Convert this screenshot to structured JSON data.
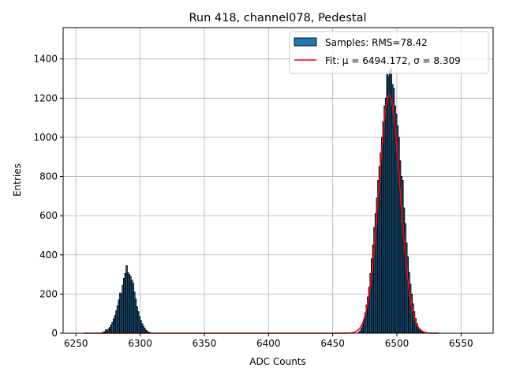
{
  "chart_data": {
    "type": "bar",
    "title": "Run 418, channel078, Pedestal",
    "xlabel": "ADC Counts",
    "ylabel": "Entries",
    "xlim": [
      6240,
      6575
    ],
    "ylim": [
      0,
      1560
    ],
    "xticks": [
      6250,
      6300,
      6350,
      6400,
      6450,
      6500,
      6550
    ],
    "yticks": [
      0,
      200,
      400,
      600,
      800,
      1000,
      1200,
      1400
    ],
    "grid": true,
    "legend_position": "top-right",
    "colors": {
      "bars": "#1f77b4",
      "bar_edge": "#000000",
      "fit": "#ff0000",
      "grid": "#b0b0b0"
    },
    "histogram": {
      "name": "Samples: RMS=78.42",
      "bin_width": 1,
      "bins": [
        [
          6270,
          3
        ],
        [
          6271,
          5
        ],
        [
          6272,
          8
        ],
        [
          6273,
          18
        ],
        [
          6274,
          12
        ],
        [
          6275,
          22
        ],
        [
          6276,
          30
        ],
        [
          6277,
          42
        ],
        [
          6278,
          55
        ],
        [
          6279,
          72
        ],
        [
          6280,
          90
        ],
        [
          6281,
          115
        ],
        [
          6282,
          140
        ],
        [
          6283,
          170
        ],
        [
          6284,
          205
        ],
        [
          6285,
          200
        ],
        [
          6286,
          245
        ],
        [
          6287,
          280
        ],
        [
          6288,
          305
        ],
        [
          6289,
          345
        ],
        [
          6290,
          310
        ],
        [
          6291,
          300
        ],
        [
          6292,
          290
        ],
        [
          6293,
          270
        ],
        [
          6294,
          255
        ],
        [
          6295,
          210
        ],
        [
          6296,
          175
        ],
        [
          6297,
          135
        ],
        [
          6298,
          110
        ],
        [
          6299,
          85
        ],
        [
          6300,
          65
        ],
        [
          6301,
          48
        ],
        [
          6302,
          35
        ],
        [
          6303,
          25
        ],
        [
          6304,
          15
        ],
        [
          6305,
          9
        ],
        [
          6306,
          6
        ],
        [
          6307,
          3
        ],
        [
          6470,
          5
        ],
        [
          6471,
          12
        ],
        [
          6472,
          25
        ],
        [
          6473,
          45
        ],
        [
          6474,
          70
        ],
        [
          6475,
          105
        ],
        [
          6476,
          145
        ],
        [
          6477,
          185
        ],
        [
          6478,
          235
        ],
        [
          6479,
          305
        ],
        [
          6480,
          380
        ],
        [
          6481,
          450
        ],
        [
          6482,
          540
        ],
        [
          6483,
          610
        ],
        [
          6484,
          690
        ],
        [
          6485,
          780
        ],
        [
          6486,
          850
        ],
        [
          6487,
          920
        ],
        [
          6488,
          1000
        ],
        [
          6489,
          1080
        ],
        [
          6490,
          1160
        ],
        [
          6491,
          1200
        ],
        [
          6492,
          1320
        ],
        [
          6493,
          1310
        ],
        [
          6494,
          1340
        ],
        [
          6495,
          1350
        ],
        [
          6496,
          1270
        ],
        [
          6497,
          1250
        ],
        [
          6498,
          1160
        ],
        [
          6499,
          1120
        ],
        [
          6500,
          1060
        ],
        [
          6501,
          1000
        ],
        [
          6502,
          880
        ],
        [
          6503,
          800
        ],
        [
          6504,
          780
        ],
        [
          6505,
          640
        ],
        [
          6506,
          560
        ],
        [
          6507,
          460
        ],
        [
          6508,
          390
        ],
        [
          6509,
          310
        ],
        [
          6510,
          250
        ],
        [
          6511,
          200
        ],
        [
          6512,
          150
        ],
        [
          6513,
          110
        ],
        [
          6514,
          75
        ],
        [
          6515,
          50
        ],
        [
          6516,
          32
        ],
        [
          6517,
          20
        ],
        [
          6518,
          12
        ],
        [
          6519,
          7
        ],
        [
          6520,
          4
        ],
        [
          6521,
          2
        ]
      ]
    },
    "fit": {
      "name": "Fit: μ = 6494.172, σ = 8.309",
      "mu": 6494.172,
      "sigma": 8.309,
      "amplitude": 1215,
      "x_range": [
        6256,
        6533
      ]
    }
  }
}
